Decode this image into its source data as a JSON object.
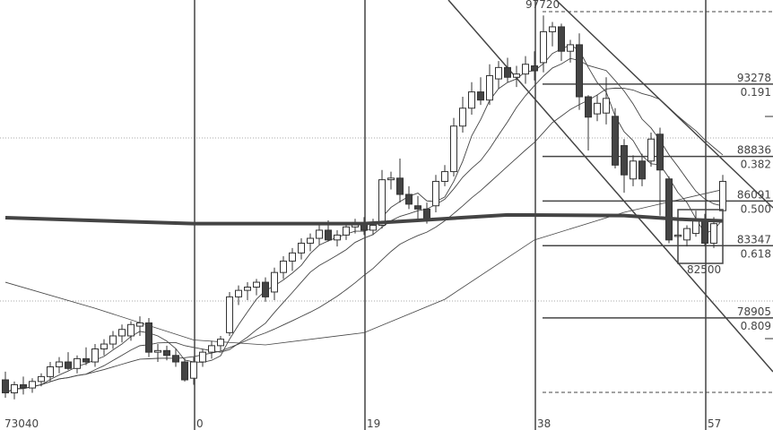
{
  "chart_data": {
    "type": "candlestick",
    "title": "",
    "x_tick_labels": [
      {
        "index": -21,
        "label": "73040"
      },
      {
        "index": 0,
        "label": "0"
      },
      {
        "index": 19,
        "label": "19"
      },
      {
        "index": 38,
        "label": "38"
      },
      {
        "index": 57,
        "label": "57"
      }
    ],
    "high_label": "97720",
    "low_box_label": "82500",
    "first_index": -21,
    "candles": [
      [
        75100,
        75600,
        74000,
        74300
      ],
      [
        74300,
        75000,
        73900,
        74800
      ],
      [
        74800,
        75300,
        74200,
        74600
      ],
      [
        74600,
        75200,
        74300,
        75000
      ],
      [
        75000,
        75500,
        74700,
        75300
      ],
      [
        75300,
        76200,
        75000,
        75900
      ],
      [
        75900,
        76500,
        75500,
        76200
      ],
      [
        76200,
        76800,
        75700,
        75800
      ],
      [
        75800,
        76600,
        75500,
        76400
      ],
      [
        76400,
        77100,
        76000,
        76200
      ],
      [
        76200,
        77300,
        75900,
        77000
      ],
      [
        77000,
        77600,
        76600,
        77300
      ],
      [
        77300,
        78100,
        77000,
        77800
      ],
      [
        77800,
        78500,
        77400,
        78200
      ],
      [
        77800,
        78700,
        77500,
        78500
      ],
      [
        78400,
        79000,
        77800,
        78600
      ],
      [
        78600,
        78900,
        76500,
        76800
      ],
      [
        76800,
        77300,
        76200,
        76900
      ],
      [
        76900,
        77200,
        76300,
        76600
      ],
      [
        76600,
        77000,
        75900,
        76200
      ],
      [
        76200,
        76400,
        75000,
        75100
      ],
      [
        75200,
        76500,
        74800,
        76200
      ],
      [
        76200,
        77000,
        75900,
        76800
      ],
      [
        76800,
        77500,
        76400,
        77200
      ],
      [
        77200,
        77800,
        76900,
        77600
      ],
      [
        78000,
        80500,
        77800,
        80200
      ],
      [
        80200,
        80900,
        79700,
        80600
      ],
      [
        80600,
        81100,
        80000,
        80800
      ],
      [
        80800,
        81300,
        80300,
        81100
      ],
      [
        81100,
        81400,
        79900,
        80200
      ],
      [
        80500,
        82000,
        80000,
        81700
      ],
      [
        81700,
        82700,
        81300,
        82400
      ],
      [
        82400,
        83200,
        81800,
        82900
      ],
      [
        82900,
        83800,
        82500,
        83500
      ],
      [
        83500,
        84100,
        83000,
        83800
      ],
      [
        83800,
        84600,
        83400,
        84300
      ],
      [
        84300,
        84900,
        83600,
        83700
      ],
      [
        83700,
        84300,
        83300,
        84000
      ],
      [
        84000,
        84800,
        83700,
        84500
      ],
      [
        84500,
        85000,
        84100,
        84700
      ],
      [
        84700,
        85100,
        84000,
        84300
      ],
      [
        84300,
        85000,
        84000,
        84600
      ],
      [
        84600,
        88000,
        84400,
        87400
      ],
      [
        87400,
        87900,
        86800,
        87500
      ],
      [
        87500,
        88700,
        86000,
        86500
      ],
      [
        86500,
        87000,
        85600,
        85900
      ],
      [
        85800,
        86400,
        85000,
        85600
      ],
      [
        85600,
        86000,
        84700,
        85000
      ],
      [
        85800,
        87700,
        85400,
        87300
      ],
      [
        87300,
        88300,
        87000,
        87900
      ],
      [
        87900,
        91200,
        87600,
        90700
      ],
      [
        90700,
        92500,
        90300,
        91800
      ],
      [
        91800,
        93400,
        91400,
        92800
      ],
      [
        92800,
        93700,
        92000,
        92300
      ],
      [
        92300,
        94500,
        92000,
        93800
      ],
      [
        93600,
        94700,
        93000,
        94300
      ],
      [
        94300,
        94900,
        93400,
        93700
      ],
      [
        93700,
        94400,
        93100,
        93900
      ],
      [
        93900,
        95000,
        93300,
        94500
      ],
      [
        94400,
        95300,
        93500,
        94100
      ],
      [
        94600,
        97500,
        94000,
        96500
      ],
      [
        96500,
        97100,
        95600,
        96800
      ],
      [
        96800,
        97000,
        94700,
        95300
      ],
      [
        95300,
        96000,
        94600,
        95700
      ],
      [
        95700,
        96400,
        91700,
        92500
      ],
      [
        92500,
        92600,
        89200,
        91250
      ],
      [
        91450,
        92600,
        91000,
        92100
      ],
      [
        91500,
        93700,
        90800,
        92400
      ],
      [
        91300,
        91800,
        88100,
        88300
      ],
      [
        89500,
        89900,
        86600,
        87700
      ],
      [
        87450,
        88900,
        87000,
        88550
      ],
      [
        88550,
        89000,
        87000,
        87450
      ],
      [
        88550,
        90300,
        88200,
        89900
      ],
      [
        90200,
        90600,
        85200,
        88000
      ],
      [
        87450,
        87600,
        83500,
        83700
      ],
      [
        84000,
        84100,
        83900,
        84000
      ],
      [
        83700,
        84600,
        83300,
        84400
      ],
      [
        84100,
        85500,
        83900,
        84950
      ],
      [
        84950,
        85300,
        83300,
        83500
      ],
      [
        83500,
        85100,
        83200,
        84700
      ],
      [
        85500,
        87700,
        84700,
        87300
      ]
    ],
    "moving_averages_computed_periods": [
      5,
      10,
      20
    ],
    "long_ma_thick": [
      [
        -21,
        85070
      ],
      [
        0,
        84700
      ],
      [
        19,
        84700
      ],
      [
        35,
        85240
      ],
      [
        48,
        85200
      ],
      [
        54,
        84980
      ],
      [
        59,
        84870
      ]
    ],
    "long_ma_thin": [
      [
        -21,
        81100
      ],
      [
        -11,
        79500
      ],
      [
        0,
        77550
      ],
      [
        8,
        77250
      ],
      [
        19,
        78000
      ],
      [
        28,
        80050
      ],
      [
        38,
        83700
      ],
      [
        48,
        85400
      ],
      [
        59,
        86800
      ]
    ],
    "fibonacci": [
      {
        "price": "93278",
        "ratio": "0.191"
      },
      {
        "price": "88836",
        "ratio": "0.382"
      },
      {
        "price": "86091",
        "ratio": "0.500"
      },
      {
        "price": "83347",
        "ratio": "0.618"
      },
      {
        "price": "78905",
        "ratio": "0.809"
      }
    ],
    "colors": {
      "bull_fill": "#ffffff",
      "bear_fill": "#444444",
      "line": "#333333",
      "background": "#ffffff"
    }
  }
}
